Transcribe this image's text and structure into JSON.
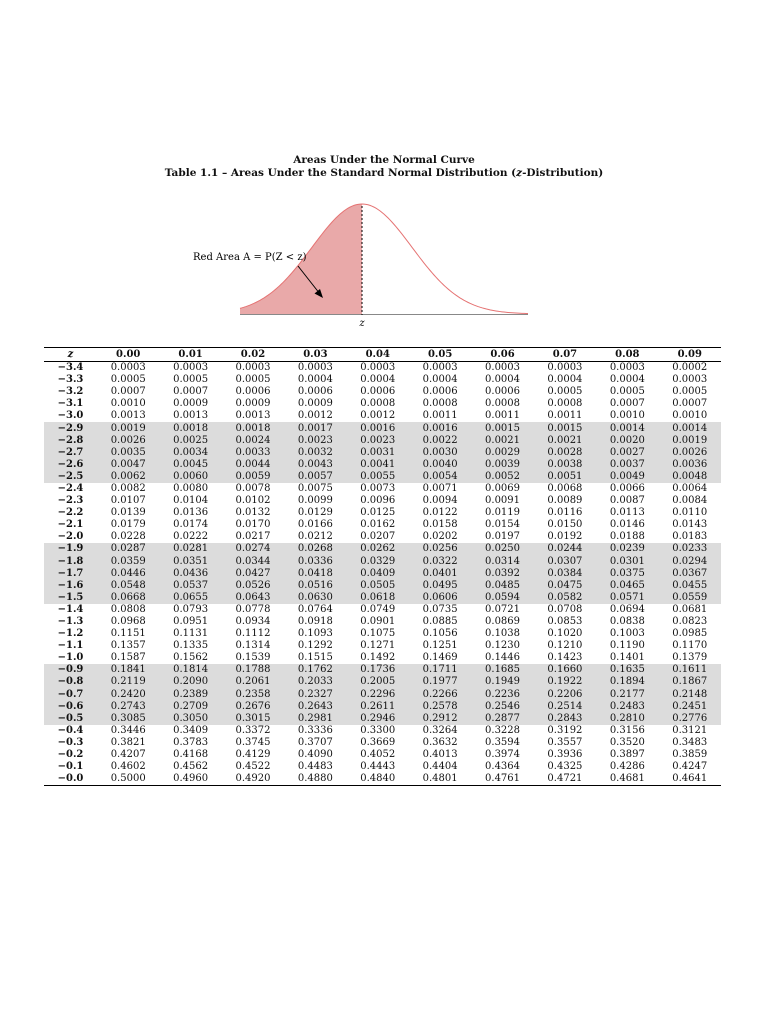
{
  "title": "Areas Under the Normal Curve",
  "subtitle_prefix": "Table 1.1 – Areas Under the Standard Normal Distribution (",
  "subtitle_var": "z",
  "subtitle_suffix": "-Distribution)",
  "figure": {
    "annotation": "Red Area A = P(Z < z)",
    "axis_label": "z",
    "fill_color": "#e9a9a9",
    "curve_color": "#e57373"
  },
  "shade_color": "#dcdcdc",
  "table": {
    "headers": [
      "z",
      "0.00",
      "0.01",
      "0.02",
      "0.03",
      "0.04",
      "0.05",
      "0.06",
      "0.07",
      "0.08",
      "0.09"
    ],
    "rows": [
      {
        "z": "−3.4",
        "shaded": false,
        "values": [
          "0.0003",
          "0.0003",
          "0.0003",
          "0.0003",
          "0.0003",
          "0.0003",
          "0.0003",
          "0.0003",
          "0.0003",
          "0.0002"
        ]
      },
      {
        "z": "−3.3",
        "shaded": false,
        "values": [
          "0.0005",
          "0.0005",
          "0.0005",
          "0.0004",
          "0.0004",
          "0.0004",
          "0.0004",
          "0.0004",
          "0.0004",
          "0.0003"
        ]
      },
      {
        "z": "−3.2",
        "shaded": false,
        "values": [
          "0.0007",
          "0.0007",
          "0.0006",
          "0.0006",
          "0.0006",
          "0.0006",
          "0.0006",
          "0.0005",
          "0.0005",
          "0.0005"
        ]
      },
      {
        "z": "−3.1",
        "shaded": false,
        "values": [
          "0.0010",
          "0.0009",
          "0.0009",
          "0.0009",
          "0.0008",
          "0.0008",
          "0.0008",
          "0.0008",
          "0.0007",
          "0.0007"
        ]
      },
      {
        "z": "−3.0",
        "shaded": false,
        "values": [
          "0.0013",
          "0.0013",
          "0.0013",
          "0.0012",
          "0.0012",
          "0.0011",
          "0.0011",
          "0.0011",
          "0.0010",
          "0.0010"
        ]
      },
      {
        "z": "−2.9",
        "shaded": true,
        "values": [
          "0.0019",
          "0.0018",
          "0.0018",
          "0.0017",
          "0.0016",
          "0.0016",
          "0.0015",
          "0.0015",
          "0.0014",
          "0.0014"
        ]
      },
      {
        "z": "−2.8",
        "shaded": true,
        "values": [
          "0.0026",
          "0.0025",
          "0.0024",
          "0.0023",
          "0.0023",
          "0.0022",
          "0.0021",
          "0.0021",
          "0.0020",
          "0.0019"
        ]
      },
      {
        "z": "−2.7",
        "shaded": true,
        "values": [
          "0.0035",
          "0.0034",
          "0.0033",
          "0.0032",
          "0.0031",
          "0.0030",
          "0.0029",
          "0.0028",
          "0.0027",
          "0.0026"
        ]
      },
      {
        "z": "−2.6",
        "shaded": true,
        "values": [
          "0.0047",
          "0.0045",
          "0.0044",
          "0.0043",
          "0.0041",
          "0.0040",
          "0.0039",
          "0.0038",
          "0.0037",
          "0.0036"
        ]
      },
      {
        "z": "−2.5",
        "shaded": true,
        "values": [
          "0.0062",
          "0.0060",
          "0.0059",
          "0.0057",
          "0.0055",
          "0.0054",
          "0.0052",
          "0.0051",
          "0.0049",
          "0.0048"
        ]
      },
      {
        "z": "−2.4",
        "shaded": false,
        "values": [
          "0.0082",
          "0.0080",
          "0.0078",
          "0.0075",
          "0.0073",
          "0.0071",
          "0.0069",
          "0.0068",
          "0.0066",
          "0.0064"
        ]
      },
      {
        "z": "−2.3",
        "shaded": false,
        "values": [
          "0.0107",
          "0.0104",
          "0.0102",
          "0.0099",
          "0.0096",
          "0.0094",
          "0.0091",
          "0.0089",
          "0.0087",
          "0.0084"
        ]
      },
      {
        "z": "−2.2",
        "shaded": false,
        "values": [
          "0.0139",
          "0.0136",
          "0.0132",
          "0.0129",
          "0.0125",
          "0.0122",
          "0.0119",
          "0.0116",
          "0.0113",
          "0.0110"
        ]
      },
      {
        "z": "−2.1",
        "shaded": false,
        "values": [
          "0.0179",
          "0.0174",
          "0.0170",
          "0.0166",
          "0.0162",
          "0.0158",
          "0.0154",
          "0.0150",
          "0.0146",
          "0.0143"
        ]
      },
      {
        "z": "−2.0",
        "shaded": false,
        "values": [
          "0.0228",
          "0.0222",
          "0.0217",
          "0.0212",
          "0.0207",
          "0.0202",
          "0.0197",
          "0.0192",
          "0.0188",
          "0.0183"
        ]
      },
      {
        "z": "−1.9",
        "shaded": true,
        "values": [
          "0.0287",
          "0.0281",
          "0.0274",
          "0.0268",
          "0.0262",
          "0.0256",
          "0.0250",
          "0.0244",
          "0.0239",
          "0.0233"
        ]
      },
      {
        "z": "−1.8",
        "shaded": true,
        "values": [
          "0.0359",
          "0.0351",
          "0.0344",
          "0.0336",
          "0.0329",
          "0.0322",
          "0.0314",
          "0.0307",
          "0.0301",
          "0.0294"
        ]
      },
      {
        "z": "−1.7",
        "shaded": true,
        "values": [
          "0.0446",
          "0.0436",
          "0.0427",
          "0.0418",
          "0.0409",
          "0.0401",
          "0.0392",
          "0.0384",
          "0.0375",
          "0.0367"
        ]
      },
      {
        "z": "−1.6",
        "shaded": true,
        "values": [
          "0.0548",
          "0.0537",
          "0.0526",
          "0.0516",
          "0.0505",
          "0.0495",
          "0.0485",
          "0.0475",
          "0.0465",
          "0.0455"
        ]
      },
      {
        "z": "−1.5",
        "shaded": true,
        "values": [
          "0.0668",
          "0.0655",
          "0.0643",
          "0.0630",
          "0.0618",
          "0.0606",
          "0.0594",
          "0.0582",
          "0.0571",
          "0.0559"
        ]
      },
      {
        "z": "−1.4",
        "shaded": false,
        "values": [
          "0.0808",
          "0.0793",
          "0.0778",
          "0.0764",
          "0.0749",
          "0.0735",
          "0.0721",
          "0.0708",
          "0.0694",
          "0.0681"
        ]
      },
      {
        "z": "−1.3",
        "shaded": false,
        "values": [
          "0.0968",
          "0.0951",
          "0.0934",
          "0.0918",
          "0.0901",
          "0.0885",
          "0.0869",
          "0.0853",
          "0.0838",
          "0.0823"
        ]
      },
      {
        "z": "−1.2",
        "shaded": false,
        "values": [
          "0.1151",
          "0.1131",
          "0.1112",
          "0.1093",
          "0.1075",
          "0.1056",
          "0.1038",
          "0.1020",
          "0.1003",
          "0.0985"
        ]
      },
      {
        "z": "−1.1",
        "shaded": false,
        "values": [
          "0.1357",
          "0.1335",
          "0.1314",
          "0.1292",
          "0.1271",
          "0.1251",
          "0.1230",
          "0.1210",
          "0.1190",
          "0.1170"
        ]
      },
      {
        "z": "−1.0",
        "shaded": false,
        "values": [
          "0.1587",
          "0.1562",
          "0.1539",
          "0.1515",
          "0.1492",
          "0.1469",
          "0.1446",
          "0.1423",
          "0.1401",
          "0.1379"
        ]
      },
      {
        "z": "−0.9",
        "shaded": true,
        "values": [
          "0.1841",
          "0.1814",
          "0.1788",
          "0.1762",
          "0.1736",
          "0.1711",
          "0.1685",
          "0.1660",
          "0.1635",
          "0.1611"
        ]
      },
      {
        "z": "−0.8",
        "shaded": true,
        "values": [
          "0.2119",
          "0.2090",
          "0.2061",
          "0.2033",
          "0.2005",
          "0.1977",
          "0.1949",
          "0.1922",
          "0.1894",
          "0.1867"
        ]
      },
      {
        "z": "−0.7",
        "shaded": true,
        "values": [
          "0.2420",
          "0.2389",
          "0.2358",
          "0.2327",
          "0.2296",
          "0.2266",
          "0.2236",
          "0.2206",
          "0.2177",
          "0.2148"
        ]
      },
      {
        "z": "−0.6",
        "shaded": true,
        "values": [
          "0.2743",
          "0.2709",
          "0.2676",
          "0.2643",
          "0.2611",
          "0.2578",
          "0.2546",
          "0.2514",
          "0.2483",
          "0.2451"
        ]
      },
      {
        "z": "−0.5",
        "shaded": true,
        "values": [
          "0.3085",
          "0.3050",
          "0.3015",
          "0.2981",
          "0.2946",
          "0.2912",
          "0.2877",
          "0.2843",
          "0.2810",
          "0.2776"
        ]
      },
      {
        "z": "−0.4",
        "shaded": false,
        "values": [
          "0.3446",
          "0.3409",
          "0.3372",
          "0.3336",
          "0.3300",
          "0.3264",
          "0.3228",
          "0.3192",
          "0.3156",
          "0.3121"
        ]
      },
      {
        "z": "−0.3",
        "shaded": false,
        "values": [
          "0.3821",
          "0.3783",
          "0.3745",
          "0.3707",
          "0.3669",
          "0.3632",
          "0.3594",
          "0.3557",
          "0.3520",
          "0.3483"
        ]
      },
      {
        "z": "−0.2",
        "shaded": false,
        "values": [
          "0.4207",
          "0.4168",
          "0.4129",
          "0.4090",
          "0.4052",
          "0.4013",
          "0.3974",
          "0.3936",
          "0.3897",
          "0.3859"
        ]
      },
      {
        "z": "−0.1",
        "shaded": false,
        "values": [
          "0.4602",
          "0.4562",
          "0.4522",
          "0.4483",
          "0.4443",
          "0.4404",
          "0.4364",
          "0.4325",
          "0.4286",
          "0.4247"
        ]
      },
      {
        "z": "−0.0",
        "shaded": false,
        "values": [
          "0.5000",
          "0.4960",
          "0.4920",
          "0.4880",
          "0.4840",
          "0.4801",
          "0.4761",
          "0.4721",
          "0.4681",
          "0.4641"
        ]
      }
    ]
  }
}
